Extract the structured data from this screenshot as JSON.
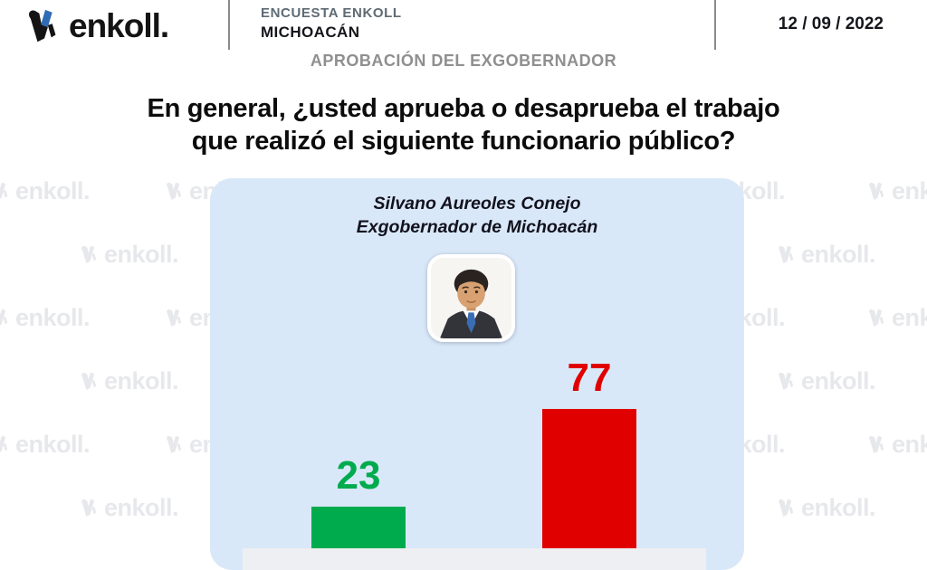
{
  "header": {
    "logo_text": "enkoll.",
    "survey_line1": "ENCUESTA ENKOLL",
    "survey_line2": "MICHOACÁN",
    "date": "12 / 09 / 2022",
    "section_title": "APROBACIÓN DEL EXGOBERNADOR"
  },
  "question": {
    "line1": "En general, ¿usted aprueba o desaprueba el trabajo",
    "line2": "que realizó el siguiente funcionario público?"
  },
  "subject": {
    "name": "Silvano Aureoles Conejo",
    "title": "Exgobernador de Michoacán",
    "photo_icon": "portrait-photo"
  },
  "watermark": {
    "text": "enkoll.",
    "color": "#e7e8eb"
  },
  "colors": {
    "bar_green": "#00AB4E",
    "bar_red": "#E10000",
    "card_bg": "#D9E8F8",
    "logo_accent_blue": "#2E6CB5"
  },
  "chart_data": {
    "type": "bar",
    "values": [
      23,
      77
    ],
    "value_labels": [
      "23",
      "77"
    ],
    "bar_colors": [
      "#00AB4E",
      "#E10000"
    ],
    "label_colors": [
      "#00AB4E",
      "#E10000"
    ],
    "ylim": [
      0,
      100
    ],
    "title": "Silvano Aureoles Conejo — Exgobernador de Michoacán",
    "grid": false,
    "legend": false
  }
}
